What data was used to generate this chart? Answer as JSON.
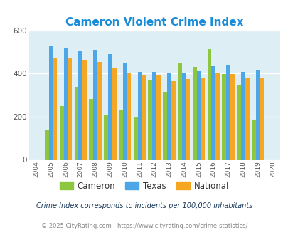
{
  "title": "Cameron Violent Crime Index",
  "years": [
    2004,
    2005,
    2006,
    2007,
    2008,
    2009,
    2010,
    2011,
    2012,
    2013,
    2014,
    2015,
    2016,
    2017,
    2018,
    2019,
    2020
  ],
  "cameron": [
    null,
    138,
    248,
    338,
    282,
    210,
    232,
    198,
    372,
    315,
    448,
    430,
    515,
    398,
    345,
    185,
    null
  ],
  "texas": [
    null,
    530,
    518,
    508,
    512,
    492,
    452,
    408,
    408,
    402,
    406,
    410,
    436,
    440,
    408,
    418,
    null
  ],
  "national": [
    null,
    470,
    472,
    465,
    453,
    428,
    403,
    390,
    390,
    365,
    375,
    383,
    400,
    397,
    381,
    379,
    null
  ],
  "cameron_color": "#8dc63f",
  "texas_color": "#4da6e8",
  "national_color": "#f5a623",
  "plot_bg": "#ddeef5",
  "ylim": [
    0,
    600
  ],
  "yticks": [
    0,
    200,
    400,
    600
  ],
  "title_color": "#1a8cd8",
  "title_fontsize": 11,
  "legend_labels": [
    "Cameron",
    "Texas",
    "National"
  ],
  "footnote1": "Crime Index corresponds to incidents per 100,000 inhabitants",
  "footnote2": "© 2025 CityRating.com - https://www.cityrating.com/crime-statistics/",
  "bar_width": 0.28,
  "grid_color": "#ffffff",
  "footnote1_color": "#1a3a5c",
  "footnote2_color": "#888888",
  "tick_color": "#555555"
}
